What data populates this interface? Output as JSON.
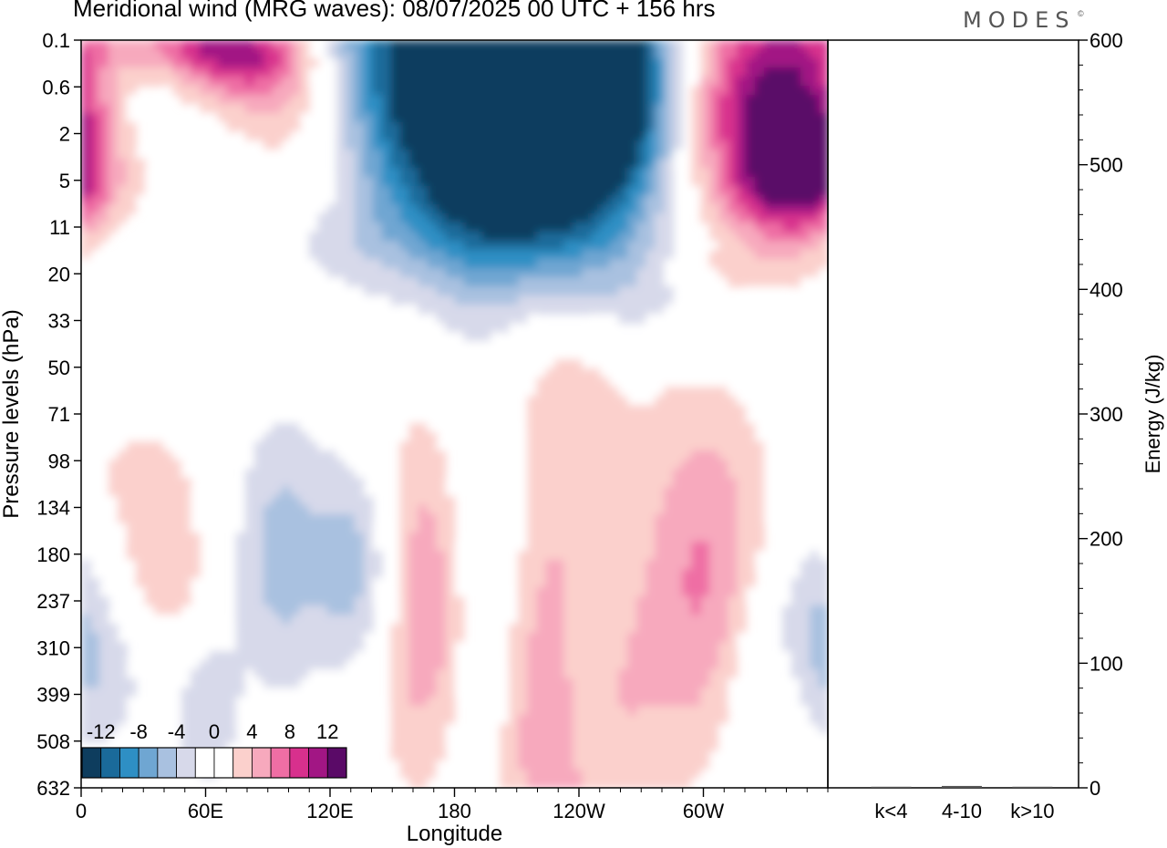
{
  "header": {
    "title": "Meridional wind (MRG waves):  08/07/2025  00 UTC  + 156 hrs",
    "logo": "MODES",
    "logo_mark": "©"
  },
  "chart_data": [
    {
      "type": "heatmap",
      "title": "Meridional wind (MRG waves):  08/07/2025  00 UTC  + 156 hrs",
      "xlabel": "Longitude",
      "ylabel": "Pressure levels (hPa)",
      "x_ticks": [
        {
          "label": "0",
          "lon": 0
        },
        {
          "label": "60E",
          "lon": 60
        },
        {
          "label": "120E",
          "lon": 120
        },
        {
          "label": "180",
          "lon": 180
        },
        {
          "label": "120W",
          "lon": 240
        },
        {
          "label": "60W",
          "lon": 300
        }
      ],
      "x_range": [
        0,
        360
      ],
      "y_levels": [
        "0.1",
        "0.6",
        "2",
        "5",
        "11",
        "20",
        "33",
        "50",
        "71",
        "98",
        "134",
        "180",
        "237",
        "310",
        "399",
        "508",
        "632"
      ],
      "colorbar": {
        "labels": [
          "-12",
          "-8",
          "-4",
          "0",
          "4",
          "8",
          "12"
        ],
        "colors": [
          "#0e3d5e",
          "#1a6a9a",
          "#2e8fc4",
          "#6fa6d2",
          "#a9c1e0",
          "#d7d9ea",
          "#ffffff",
          "#ffffff",
          "#fbd0cc",
          "#f7a9bd",
          "#ef6ea4",
          "#d8308d",
          "#a21684",
          "#5a0a67"
        ]
      },
      "blobs": [
        {
          "lon": 178,
          "lev": 0.6,
          "w": 90,
          "h": 3.2,
          "v": -14
        },
        {
          "lon": 232,
          "lev": 1.9,
          "w": 62,
          "h": 2.8,
          "v": -13
        },
        {
          "lon": 250,
          "lev": 0.6,
          "w": 40,
          "h": 2.2,
          "v": -10
        },
        {
          "lon": 220,
          "lev": 3.9,
          "w": 90,
          "h": 1.6,
          "v": -4
        },
        {
          "lon": 25,
          "lev": 1.2,
          "w": 32,
          "h": 2.2,
          "v": -6
        },
        {
          "lon": 20,
          "lev": 4.2,
          "w": 110,
          "h": 0.8,
          "v": -2.4
        },
        {
          "lon": 330,
          "lev": 1.3,
          "w": 70,
          "h": 2.8,
          "v": 14
        },
        {
          "lon": 345,
          "lev": 2.8,
          "w": 26,
          "h": 1.5,
          "v": 8
        },
        {
          "lon": 85,
          "lev": 0.6,
          "w": 40,
          "h": 1.0,
          "v": 9
        },
        {
          "lon": 65,
          "lev": 0.1,
          "w": 50,
          "h": 0.6,
          "v": 7
        },
        {
          "lon": 110,
          "lev": 1.9,
          "w": 36,
          "h": 1.5,
          "v": 6.5
        },
        {
          "lon": 95,
          "lev": 3.6,
          "w": 60,
          "h": 1.2,
          "v": 2.4
        },
        {
          "lon": 300,
          "lev": 3.8,
          "w": 70,
          "h": 1.2,
          "v": 2.6
        },
        {
          "lon": 285,
          "lev": 5.6,
          "w": 60,
          "h": 0.9,
          "v": -2.2
        },
        {
          "lon": 311,
          "lev": 5.0,
          "w": 30,
          "h": 0.7,
          "v": 2.4
        },
        {
          "lon": 30,
          "lev": 9.3,
          "w": 30,
          "h": 1.4,
          "v": 2.6
        },
        {
          "lon": 40,
          "lev": 11.5,
          "w": 25,
          "h": 1.6,
          "v": 3.4
        },
        {
          "lon": 15,
          "lev": 13.7,
          "w": 20,
          "h": 1.8,
          "v": -2.3
        },
        {
          "lon": 98,
          "lev": 11.0,
          "w": 25,
          "h": 3.0,
          "v": -5
        },
        {
          "lon": 128,
          "lev": 11.2,
          "w": 14,
          "h": 2.0,
          "v": -3
        },
        {
          "lon": 145,
          "lev": 11.5,
          "w": 18,
          "h": 2.6,
          "v": -4
        },
        {
          "lon": 165,
          "lev": 11.9,
          "w": 24,
          "h": 4.0,
          "v": 8
        },
        {
          "lon": 195,
          "lev": 11.8,
          "w": 30,
          "h": 6.0,
          "v": -5
        },
        {
          "lon": 226,
          "lev": 12.7,
          "w": 35,
          "h": 6.5,
          "v": 9
        },
        {
          "lon": 252,
          "lev": 11.0,
          "w": 46,
          "h": 3.0,
          "v": -4.5
        },
        {
          "lon": 242,
          "lev": 14.0,
          "w": 14,
          "h": 2.5,
          "v": -3.5
        },
        {
          "lon": 285,
          "lev": 11.6,
          "w": 40,
          "h": 4.0,
          "v": 6
        },
        {
          "lon": 308,
          "lev": 11.0,
          "w": 30,
          "h": 3.2,
          "v": 2.8
        },
        {
          "lon": 353,
          "lev": 12.6,
          "w": 22,
          "h": 2.2,
          "v": -4.5
        },
        {
          "lon": 60,
          "lev": 14.4,
          "w": 16,
          "h": 1.8,
          "v": -3.6
        },
        {
          "lon": 323,
          "lev": 13.2,
          "w": 16,
          "h": 2.5,
          "v": -2.3
        },
        {
          "lon": 335,
          "lev": 14.5,
          "w": 12,
          "h": 1.4,
          "v": 2.4
        }
      ]
    },
    {
      "type": "bar",
      "title": "",
      "ylabel": "Energy (J/kg)",
      "categories": [
        "k<4",
        "4-10",
        "k>10"
      ],
      "values": [
        0.5,
        1.5,
        0.3
      ],
      "ylim": [
        0,
        600
      ],
      "y_ticks": [
        "0",
        "100",
        "200",
        "300",
        "400",
        "500",
        "600"
      ]
    }
  ]
}
